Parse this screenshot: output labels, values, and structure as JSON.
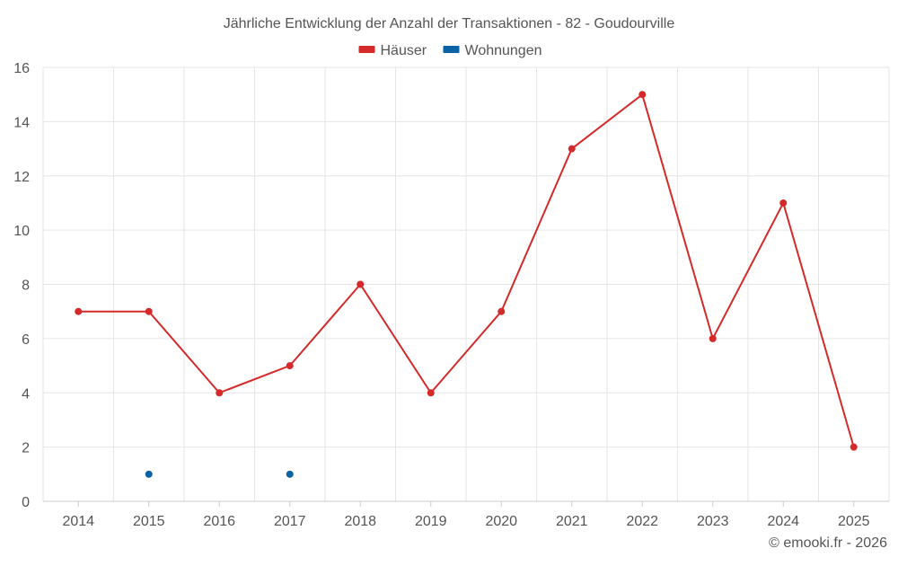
{
  "chart_data": {
    "type": "line",
    "title": "Jährliche Entwicklung der Anzahl der Transaktionen - 82 - Goudourville",
    "xlabel": "",
    "ylabel": "",
    "categories": [
      "2014",
      "2015",
      "2016",
      "2017",
      "2018",
      "2019",
      "2020",
      "2021",
      "2022",
      "2023",
      "2024",
      "2025"
    ],
    "ylim": [
      0,
      16
    ],
    "yticks": [
      "0",
      "2",
      "4",
      "6",
      "8",
      "10",
      "12",
      "14",
      "16"
    ],
    "grid": true,
    "legend_position": "top-center",
    "series": [
      {
        "name": "Häuser",
        "color": "#d42a2a",
        "values": [
          7,
          7,
          4,
          5,
          8,
          4,
          7,
          13,
          15,
          6,
          11,
          2
        ],
        "line": true
      },
      {
        "name": "Wohnungen",
        "color": "#0b62a4",
        "values": [
          null,
          1,
          null,
          1,
          null,
          null,
          null,
          null,
          null,
          null,
          null,
          null
        ],
        "line": false
      }
    ],
    "credit": "© emooki.fr - 2026"
  }
}
